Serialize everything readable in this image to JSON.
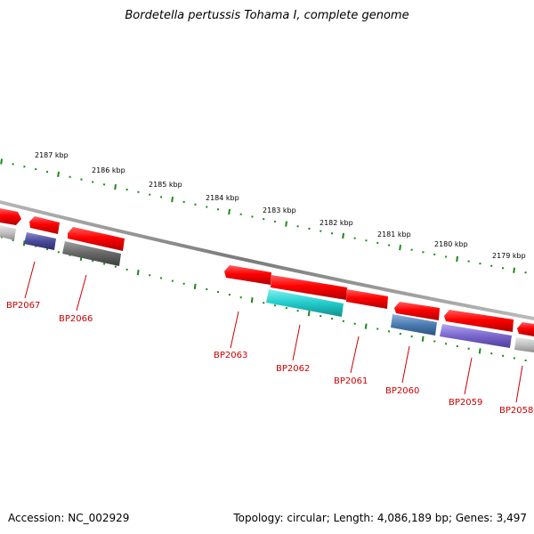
{
  "title": "Bordetella pertussis Tohama I, complete genome",
  "footer": {
    "accession": "Accession: NC_002929",
    "stats": "Topology: circular; Length: 4,086,189 bp; Genes: 3,497"
  },
  "ruler_labels": [
    "2187 kbp",
    "2186 kbp",
    "2185 kbp",
    "2184 kbp",
    "2183 kbp",
    "2182 kbp",
    "2181 kbp",
    "2180 kbp",
    "2179 kbp"
  ],
  "gene_labels": [
    "BP2067",
    "BP2066",
    "BP2063",
    "BP2062",
    "BP2061",
    "BP2060",
    "BP2059",
    "BP2058"
  ],
  "colors": {
    "forward_gene": "#ff0000",
    "ruler_ticks": "#1a8a1a",
    "backbone": "#808080",
    "label": "#cc0000",
    "cyan_gene": "#22cccc",
    "blue_gene": "#4a7ab0",
    "purple_gene": "#7a66cc",
    "navy_gene": "#4a4a9a",
    "dark_gray_gene": "#666666",
    "light_gray_gene": "#c0c0c0"
  }
}
